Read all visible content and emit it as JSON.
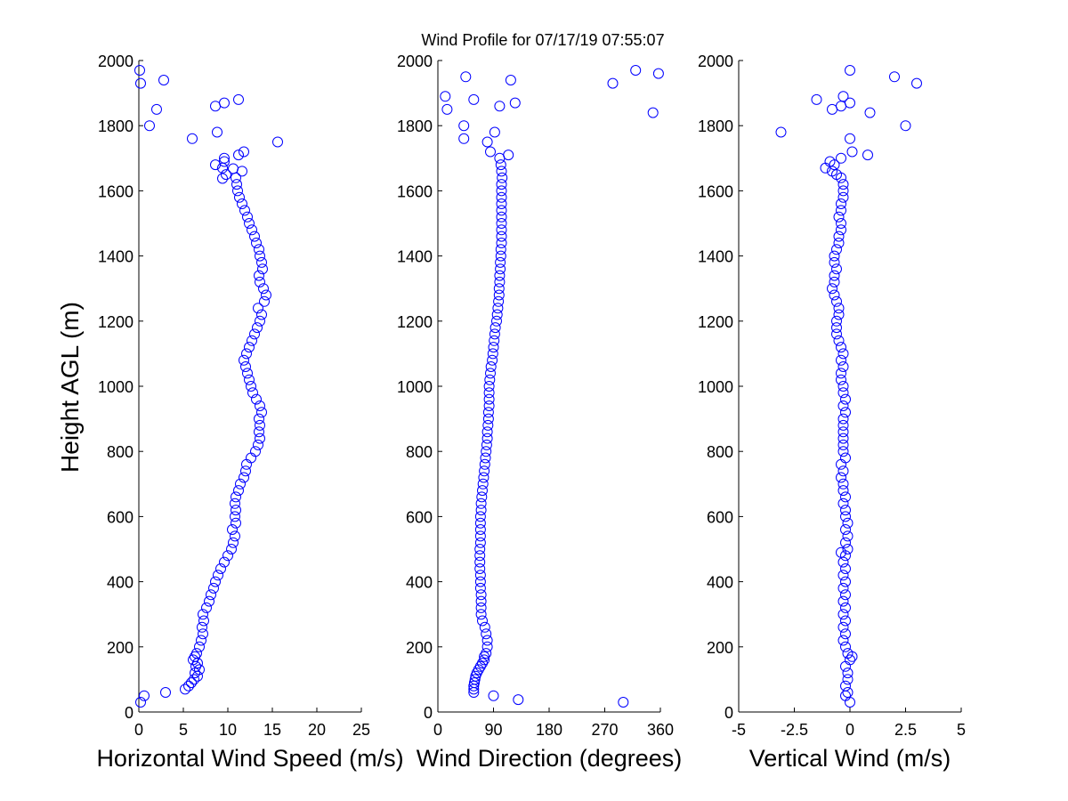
{
  "title": "Wind Profile for  07/17/19 07:55:07",
  "marker_color": "#0000ff",
  "shared_ylabel": "Height AGL (m)",
  "chart_data": [
    {
      "type": "scatter",
      "xlabel": "Horizontal Wind Speed (m/s)",
      "ylabel": "Height AGL (m)",
      "xlim": [
        0,
        25
      ],
      "ylim": [
        0,
        2000
      ],
      "xticks": [
        0,
        5,
        10,
        15,
        20,
        25
      ],
      "xtick_labels": [
        "0",
        "5",
        "10",
        "15",
        "20",
        "25"
      ],
      "yticks": [
        0,
        200,
        400,
        600,
        800,
        1000,
        1200,
        1400,
        1600,
        1800,
        2000
      ],
      "ytick_labels": [
        "0",
        "200",
        "400",
        "600",
        "800",
        "1000",
        "1200",
        "1400",
        "1600",
        "1800",
        "2000"
      ],
      "grid": false,
      "profile": {
        "height": [
          30,
          50,
          60,
          70,
          80,
          90,
          100,
          110,
          120,
          130,
          140,
          150,
          160,
          170,
          180,
          200,
          220,
          240,
          260,
          280,
          300,
          320,
          340,
          360,
          380,
          400,
          420,
          440,
          460,
          480,
          500,
          520,
          540,
          560,
          580,
          600,
          620,
          640,
          660,
          680,
          700,
          720,
          740,
          760,
          780,
          800,
          820,
          840,
          860,
          880,
          900,
          920,
          940,
          960,
          980,
          1000,
          1020,
          1040,
          1060,
          1080,
          1100,
          1120,
          1140,
          1160,
          1180,
          1200,
          1220,
          1240,
          1260,
          1280,
          1300,
          1320,
          1340,
          1360,
          1380,
          1400,
          1420,
          1440,
          1460,
          1480,
          1500,
          1520,
          1540,
          1560,
          1580,
          1600,
          1620,
          1640,
          1660,
          1670,
          1680,
          1700,
          1710,
          1720,
          1750,
          1760,
          1780,
          1800,
          1850,
          1860,
          1870,
          1880,
          1930,
          1940,
          1970
        ],
        "speed": [
          0.2,
          0.6,
          3.0,
          5.2,
          5.6,
          5.9,
          6.2,
          6.6,
          6.3,
          6.8,
          6.4,
          6.6,
          6.1,
          6.3,
          6.5,
          6.8,
          7.0,
          7.2,
          7.1,
          7.3,
          7.2,
          7.6,
          7.9,
          8.1,
          8.4,
          8.6,
          8.9,
          9.2,
          9.6,
          10.0,
          10.4,
          10.6,
          10.8,
          10.5,
          10.9,
          10.8,
          10.9,
          10.8,
          10.9,
          11.2,
          11.4,
          11.8,
          12.0,
          12.1,
          12.6,
          13.1,
          13.4,
          13.6,
          13.5,
          13.6,
          13.5,
          13.8,
          13.6,
          13.2,
          12.8,
          12.6,
          12.4,
          12.2,
          12.0,
          11.8,
          12.1,
          12.4,
          12.7,
          13.0,
          13.3,
          13.6,
          13.8,
          13.4,
          14.1,
          14.3,
          14.0,
          13.6,
          13.5,
          13.9,
          13.8,
          13.6,
          13.5,
          13.2,
          13.0,
          12.7,
          12.4,
          12.2,
          11.9,
          11.6,
          11.3,
          11.1,
          11.0,
          10.9,
          11.6,
          9.4,
          8.6,
          9.6,
          11.2,
          11.8,
          15.6,
          6.0,
          8.8,
          1.2,
          2.0,
          8.6,
          9.6,
          11.2,
          0.2,
          2.8,
          0.1
        ]
      },
      "scatter_points": [
        [
          9.6,
          1690
        ],
        [
          9.8,
          1650
        ],
        [
          10.6,
          1668
        ],
        [
          9.4,
          1638
        ]
      ]
    },
    {
      "type": "scatter",
      "xlabel": "Wind Direction (degrees)",
      "xlim": [
        0,
        360
      ],
      "ylim": [
        0,
        2000
      ],
      "xticks": [
        0,
        90,
        180,
        270,
        360
      ],
      "xtick_labels": [
        "0",
        "90",
        "180",
        "270",
        "360"
      ],
      "yticks": [
        0,
        200,
        400,
        600,
        800,
        1000,
        1200,
        1400,
        1600,
        1800,
        2000
      ],
      "ytick_labels": [
        "0",
        "200",
        "400",
        "600",
        "800",
        "1000",
        "1200",
        "1400",
        "1600",
        "1800",
        "2000"
      ],
      "grid": false,
      "profile": {
        "height": [
          60,
          70,
          80,
          90,
          100,
          110,
          120,
          130,
          140,
          150,
          160,
          170,
          180,
          200,
          220,
          240,
          260,
          280,
          300,
          320,
          340,
          360,
          380,
          400,
          420,
          440,
          460,
          480,
          500,
          520,
          540,
          560,
          580,
          600,
          620,
          640,
          660,
          680,
          700,
          720,
          740,
          760,
          780,
          800,
          820,
          840,
          860,
          880,
          900,
          920,
          940,
          960,
          980,
          1000,
          1020,
          1040,
          1060,
          1080,
          1100,
          1120,
          1140,
          1160,
          1180,
          1200,
          1220,
          1240,
          1260,
          1280,
          1300,
          1320,
          1340,
          1360,
          1380,
          1400,
          1420,
          1440,
          1460,
          1480,
          1500,
          1520,
          1540,
          1560,
          1580,
          1600,
          1620,
          1640,
          1660,
          1680,
          1700
        ],
        "direction": [
          58,
          58,
          58,
          59,
          60,
          61,
          63,
          66,
          69,
          72,
          75,
          75,
          78,
          80,
          80,
          78,
          76,
          72,
          70,
          70,
          70,
          70,
          69,
          69,
          69,
          68,
          68,
          68,
          68,
          69,
          69,
          69,
          69,
          69,
          70,
          70,
          71,
          72,
          73,
          74,
          75,
          76,
          77,
          78,
          79,
          80,
          80,
          81,
          82,
          82,
          83,
          83,
          83,
          83,
          84,
          85,
          86,
          88,
          89,
          90,
          91,
          92,
          93,
          95,
          96,
          97,
          98,
          99,
          99,
          100,
          100,
          101,
          101,
          102,
          102,
          103,
          103,
          103,
          103,
          103,
          103,
          103,
          103,
          103,
          103,
          104,
          103,
          102,
          100
        ]
      },
      "scatter_points": [
        [
          90,
          50
        ],
        [
          130,
          38
        ],
        [
          300,
          30
        ],
        [
          85,
          1720
        ],
        [
          80,
          1750
        ],
        [
          42,
          1760
        ],
        [
          92,
          1780
        ],
        [
          42,
          1800
        ],
        [
          15,
          1850
        ],
        [
          100,
          1860
        ],
        [
          12,
          1890
        ],
        [
          58,
          1880
        ],
        [
          125,
          1870
        ],
        [
          283,
          1930
        ],
        [
          118,
          1940
        ],
        [
          45,
          1950
        ],
        [
          320,
          1970
        ],
        [
          357,
          1960
        ],
        [
          348,
          1840
        ],
        [
          114,
          1710
        ]
      ]
    },
    {
      "type": "scatter",
      "xlabel": "Vertical Wind (m/s)",
      "xlim": [
        -5,
        5
      ],
      "ylim": [
        0,
        2000
      ],
      "xticks": [
        -5,
        -2.5,
        0,
        2.5,
        5
      ],
      "xtick_labels": [
        "-5",
        "-2.5",
        "0",
        "2.5",
        "5"
      ],
      "yticks": [
        0,
        200,
        400,
        600,
        800,
        1000,
        1200,
        1400,
        1600,
        1800,
        2000
      ],
      "ytick_labels": [
        "0",
        "200",
        "400",
        "600",
        "800",
        "1000",
        "1200",
        "1400",
        "1600",
        "1800",
        "2000"
      ],
      "grid": false,
      "profile": {
        "height": [
          30,
          50,
          60,
          80,
          100,
          120,
          140,
          160,
          170,
          180,
          200,
          220,
          240,
          260,
          280,
          300,
          320,
          340,
          360,
          380,
          400,
          420,
          440,
          460,
          480,
          490,
          500,
          520,
          540,
          560,
          580,
          600,
          620,
          640,
          660,
          680,
          700,
          720,
          740,
          760,
          780,
          800,
          820,
          840,
          860,
          880,
          900,
          920,
          940,
          960,
          980,
          1000,
          1020,
          1040,
          1060,
          1080,
          1100,
          1120,
          1140,
          1160,
          1180,
          1200,
          1220,
          1240,
          1260,
          1280,
          1300,
          1320,
          1340,
          1360,
          1380,
          1400,
          1420,
          1440,
          1460,
          1480,
          1500,
          1520,
          1540,
          1560,
          1580,
          1600,
          1620,
          1640,
          1650,
          1660,
          1670,
          1690
        ],
        "vertical": [
          0.0,
          -0.2,
          -0.1,
          -0.2,
          -0.1,
          -0.1,
          -0.2,
          0.0,
          0.1,
          -0.1,
          -0.2,
          -0.3,
          -0.2,
          -0.3,
          -0.2,
          -0.3,
          -0.2,
          -0.3,
          -0.2,
          -0.3,
          -0.2,
          -0.3,
          -0.2,
          -0.3,
          -0.2,
          -0.4,
          -0.1,
          -0.2,
          -0.1,
          -0.2,
          -0.1,
          -0.2,
          -0.2,
          -0.3,
          -0.2,
          -0.3,
          -0.3,
          -0.4,
          -0.3,
          -0.4,
          -0.2,
          -0.3,
          -0.3,
          -0.3,
          -0.3,
          -0.3,
          -0.3,
          -0.2,
          -0.3,
          -0.2,
          -0.3,
          -0.3,
          -0.4,
          -0.4,
          -0.3,
          -0.4,
          -0.3,
          -0.4,
          -0.5,
          -0.6,
          -0.6,
          -0.6,
          -0.5,
          -0.5,
          -0.6,
          -0.7,
          -0.8,
          -0.7,
          -0.7,
          -0.6,
          -0.7,
          -0.7,
          -0.6,
          -0.5,
          -0.5,
          -0.4,
          -0.4,
          -0.5,
          -0.4,
          -0.4,
          -0.3,
          -0.3,
          -0.3,
          -0.4,
          -0.6,
          -0.8,
          -1.1,
          -0.9
        ]
      },
      "scatter_points": [
        [
          -0.7,
          1680
        ],
        [
          -0.4,
          1700
        ],
        [
          0.1,
          1720
        ],
        [
          0.8,
          1710
        ],
        [
          -3.1,
          1780
        ],
        [
          0.0,
          1760
        ],
        [
          -0.4,
          1860
        ],
        [
          0.0,
          1870
        ],
        [
          -0.8,
          1850
        ],
        [
          -0.3,
          1890
        ],
        [
          -1.5,
          1880
        ],
        [
          0.9,
          1840
        ],
        [
          2.5,
          1800
        ],
        [
          2.0,
          1950
        ],
        [
          3.0,
          1930
        ],
        [
          0.0,
          1970
        ]
      ]
    }
  ]
}
